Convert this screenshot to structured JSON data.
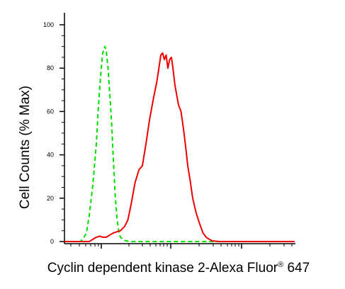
{
  "chart_data": {
    "type": "line",
    "title": "",
    "xlabel": "Cyclin dependent kinase 2-Alexa Fluor",
    "xlabel_superscript": "®",
    "xlabel_suffix": " 647",
    "ylabel": "Cell Counts (% Max)",
    "x_scale": "log",
    "ylim": [
      0,
      100
    ],
    "y_ticks": [
      0,
      20,
      40,
      60,
      80,
      100
    ],
    "grid": false,
    "legend": "none",
    "series": [
      {
        "color": "#00dd00",
        "style": "dashed",
        "points": [
          [
            -2,
            0
          ],
          [
            3,
            0
          ],
          [
            6,
            1
          ],
          [
            8,
            4
          ],
          [
            10,
            12
          ],
          [
            12,
            26
          ],
          [
            14,
            45
          ],
          [
            15,
            60
          ],
          [
            16,
            72
          ],
          [
            17,
            80
          ],
          [
            18,
            87
          ],
          [
            19,
            90
          ],
          [
            20,
            88
          ],
          [
            21,
            80
          ],
          [
            22,
            68
          ],
          [
            23,
            55
          ],
          [
            24,
            38
          ],
          [
            25,
            22
          ],
          [
            26,
            11
          ],
          [
            27,
            5
          ],
          [
            28,
            2
          ],
          [
            30,
            0.5
          ],
          [
            33,
            0
          ],
          [
            120,
            0
          ]
        ]
      },
      {
        "color": "#ee0000",
        "style": "solid",
        "points": [
          [
            -2,
            0
          ],
          [
            10,
            0
          ],
          [
            12,
            1
          ],
          [
            14,
            2
          ],
          [
            16,
            2.5
          ],
          [
            18,
            2
          ],
          [
            20,
            2
          ],
          [
            22,
            3
          ],
          [
            24,
            4
          ],
          [
            26,
            4.5
          ],
          [
            28,
            5
          ],
          [
            30,
            7
          ],
          [
            32,
            10
          ],
          [
            34,
            17
          ],
          [
            36,
            27
          ],
          [
            38,
            33
          ],
          [
            40,
            35
          ],
          [
            42,
            45
          ],
          [
            44,
            56
          ],
          [
            46,
            65
          ],
          [
            48,
            74
          ],
          [
            49,
            80
          ],
          [
            50,
            86
          ],
          [
            51,
            87
          ],
          [
            52,
            84
          ],
          [
            53,
            86
          ],
          [
            54,
            80
          ],
          [
            55,
            84
          ],
          [
            56,
            85
          ],
          [
            57,
            79
          ],
          [
            58,
            72
          ],
          [
            60,
            63
          ],
          [
            62,
            60
          ],
          [
            64,
            52
          ],
          [
            66,
            44
          ],
          [
            68,
            35
          ],
          [
            70,
            28
          ],
          [
            72,
            20
          ],
          [
            74,
            13
          ],
          [
            76,
            8
          ],
          [
            78,
            4
          ],
          [
            80,
            2
          ],
          [
            82,
            1
          ],
          [
            84,
            0.3
          ],
          [
            88,
            0
          ],
          [
            120,
            0
          ]
        ]
      }
    ]
  }
}
